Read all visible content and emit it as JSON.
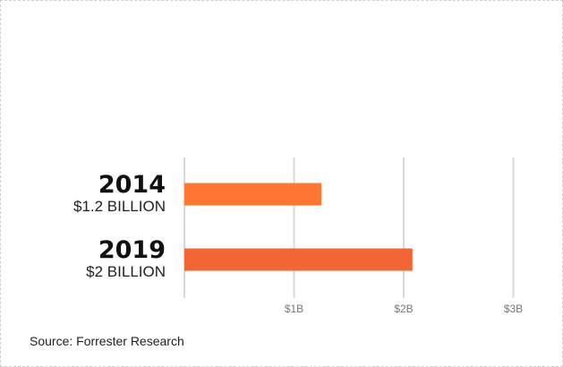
{
  "chart_data": {
    "type": "bar",
    "orientation": "horizontal",
    "categories": [
      "2014",
      "2019"
    ],
    "category_sublabels": [
      "$1.2 BILLION",
      "$2 BILLION"
    ],
    "values": [
      1.25,
      2.08
    ],
    "units": "billion USD",
    "xlim": [
      0,
      3
    ],
    "x_ticks": [
      {
        "value": 0,
        "label": ""
      },
      {
        "value": 1,
        "label": "$1B"
      },
      {
        "value": 2,
        "label": "$2B"
      },
      {
        "value": 3,
        "label": "$3B"
      }
    ],
    "grid": true,
    "bar_colors": [
      "#ff7733",
      "#f26535"
    ],
    "gridline_color": "#d9d9d9"
  },
  "source": "Source: Forrester Research"
}
